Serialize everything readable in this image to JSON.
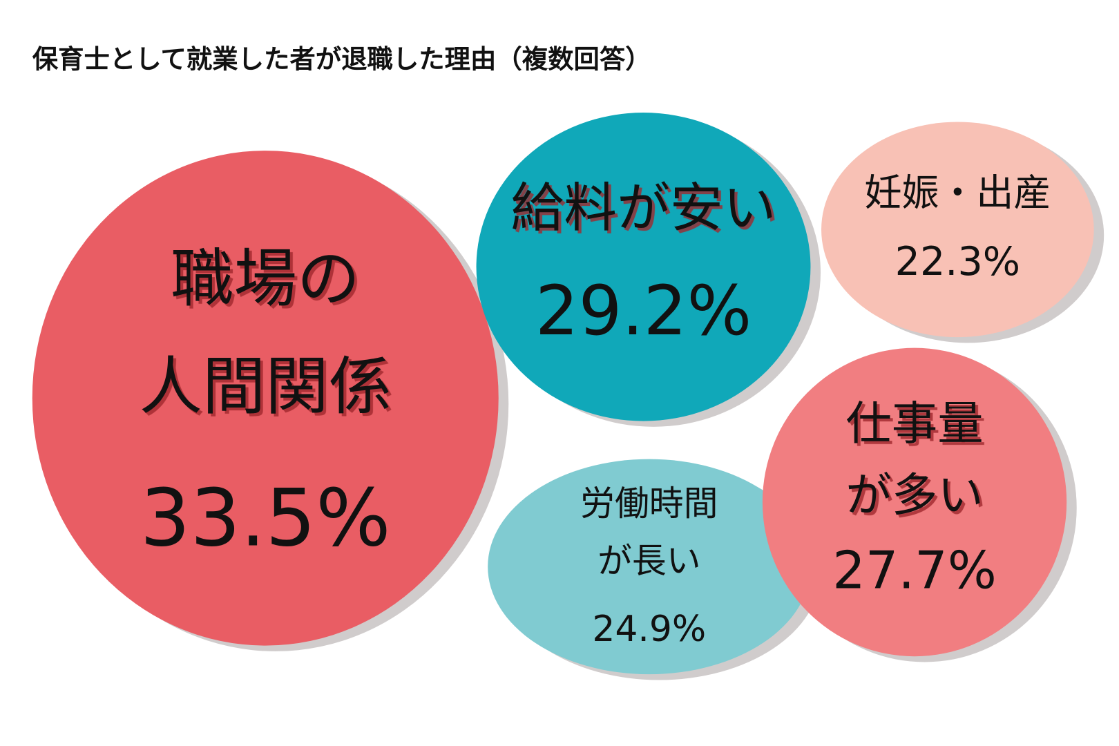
{
  "chart_data": {
    "type": "bubble",
    "title": "保育士として就業した者が退職した理由（複数回答）",
    "categories": [
      "職場の\n人間関係",
      "給料が安い",
      "妊娠・出産",
      "労働時間\nが長い",
      "仕事量\nが多い"
    ],
    "values": [
      33.5,
      29.2,
      22.3,
      24.9,
      27.7
    ],
    "value_labels": [
      "33.5%",
      "29.2%",
      "22.3%",
      "24.9%",
      "27.7%"
    ],
    "colors": [
      "#e95d64",
      "#10a8b9",
      "#f8c1b5",
      "#80cbd1",
      "#f17e81"
    ]
  }
}
